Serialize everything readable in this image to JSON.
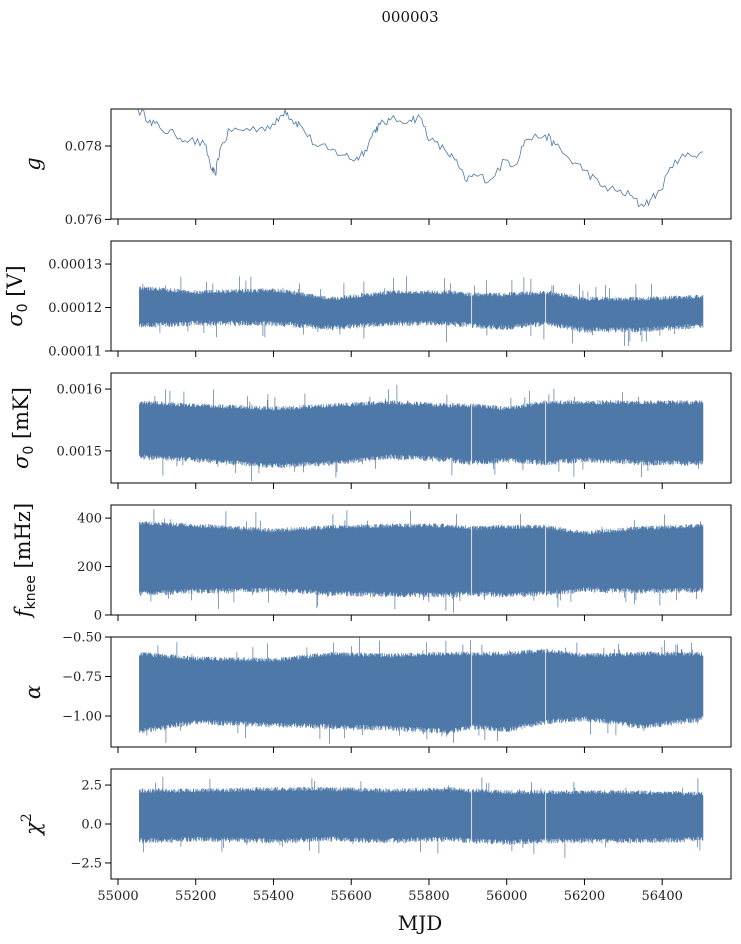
{
  "chart_data": {
    "type": "line",
    "title": "000003",
    "xlabel": "MJD",
    "xlim": [
      54982,
      56577
    ],
    "xticks": [
      55000,
      55200,
      55400,
      55600,
      55800,
      56000,
      56200,
      56400
    ],
    "xtick_labels": [
      "55000",
      "55200",
      "55400",
      "55600",
      "55800",
      "56000",
      "56200",
      "56400"
    ],
    "color": "#4e78a8",
    "panels": [
      {
        "ylabel": "g",
        "ylabel_sub": "",
        "ylabel_suffix": "",
        "ylim": [
          0.07601,
          0.07901
        ],
        "yticks": [
          0.076,
          0.078
        ],
        "ytick_labels": [
          "0.076",
          "0.078"
        ],
        "style": "line",
        "x": [
          55051,
          55082,
          55108,
          55147,
          55185,
          55224,
          55242,
          55250,
          55262,
          55288,
          55314,
          55365,
          55404,
          55430,
          55448,
          55468,
          55507,
          55546,
          55584,
          55610,
          55636,
          55661,
          55674,
          55700,
          55751,
          55777,
          55803,
          55841,
          55867,
          55893,
          55919,
          55957,
          55996,
          56022,
          56047,
          56099,
          56125,
          56163,
          56202,
          56240,
          56279,
          56318,
          56343,
          56369,
          56395,
          56433,
          56472,
          56505
        ],
        "y": [
          0.07899,
          0.07871,
          0.07849,
          0.0783,
          0.07816,
          0.07803,
          0.07734,
          0.07721,
          0.07789,
          0.07844,
          0.07844,
          0.07849,
          0.07858,
          0.07899,
          0.07871,
          0.07858,
          0.07803,
          0.07789,
          0.07775,
          0.07762,
          0.07789,
          0.07844,
          0.07858,
          0.07871,
          0.07871,
          0.07879,
          0.07816,
          0.07789,
          0.07762,
          0.07707,
          0.07721,
          0.07707,
          0.07762,
          0.07748,
          0.07816,
          0.0783,
          0.07803,
          0.07762,
          0.07734,
          0.07693,
          0.07679,
          0.07666,
          0.07638,
          0.07652,
          0.07679,
          0.07762,
          0.07775,
          0.07784
        ]
      },
      {
        "ylabel": "σ",
        "ylabel_sub": "0",
        "ylabel_suffix": " [V]",
        "ylim": [
          0.00011,
          0.0001353
        ],
        "yticks": [
          0.00011,
          0.00012,
          0.00013
        ],
        "ytick_labels": [
          "0.00011",
          "0.00012",
          "0.00013"
        ],
        "style": "band",
        "x": [
          55055,
          55200,
          55400,
          55550,
          55700,
          55850,
          55910,
          56000,
          56100,
          56200,
          56350,
          56505
        ],
        "low": [
          0.0001165,
          0.000117,
          0.000117,
          0.000116,
          0.000117,
          0.000117,
          0.0001165,
          0.000116,
          0.000117,
          0.0001155,
          0.0001155,
          0.0001165
        ],
        "high": [
          0.000124,
          0.000123,
          0.0001235,
          0.0001215,
          0.000123,
          0.000123,
          0.0001225,
          0.0001225,
          0.000123,
          0.0001215,
          0.0001215,
          0.000122
        ],
        "gaps": [
          55910,
          56100
        ]
      },
      {
        "ylabel": "σ",
        "ylabel_sub": "0",
        "ylabel_suffix": " [mK]",
        "ylim": [
          0.001448,
          0.001626
        ],
        "yticks": [
          0.0015,
          0.0016
        ],
        "ytick_labels": [
          "0.0015",
          "0.0016"
        ],
        "style": "band",
        "x": [
          55055,
          55200,
          55400,
          55550,
          55700,
          55850,
          55910,
          56000,
          56100,
          56200,
          56350,
          56505
        ],
        "low": [
          0.001495,
          0.00149,
          0.00148,
          0.001485,
          0.001495,
          0.00149,
          0.001485,
          0.00149,
          0.001485,
          0.00149,
          0.001485,
          0.001485
        ],
        "high": [
          0.001575,
          0.00157,
          0.001565,
          0.00157,
          0.001575,
          0.00157,
          0.00157,
          0.001565,
          0.001575,
          0.001575,
          0.001575,
          0.001575
        ],
        "gaps": [
          55910,
          56100
        ]
      },
      {
        "ylabel": "f",
        "ylabel_sub": "knee",
        "ylabel_suffix": " [mHz]",
        "ylim": [
          0,
          454
        ],
        "yticks": [
          0,
          200,
          400
        ],
        "ytick_labels": [
          "0",
          "200",
          "400"
        ],
        "style": "band",
        "x": [
          55055,
          55200,
          55400,
          55550,
          55700,
          55850,
          55910,
          56000,
          56100,
          56200,
          56350,
          56505
        ],
        "low": [
          100,
          110,
          115,
          100,
          95,
          95,
          100,
          95,
          100,
          115,
          110,
          115
        ],
        "high": [
          370,
          360,
          340,
          355,
          360,
          360,
          350,
          355,
          355,
          330,
          350,
          360
        ],
        "gaps": [
          55910,
          56100
        ]
      },
      {
        "ylabel": "α",
        "ylabel_sub": "",
        "ylabel_suffix": "",
        "ylim": [
          -1.196,
          -0.5
        ],
        "yticks": [
          -1.0,
          -0.75,
          -0.5
        ],
        "ytick_labels": [
          "−1.00",
          "−0.75",
          "−0.50"
        ],
        "style": "band",
        "x": [
          55055,
          55200,
          55400,
          55550,
          55700,
          55850,
          55910,
          56000,
          56100,
          56200,
          56350,
          56505
        ],
        "low": [
          -1.08,
          -1.02,
          -1.04,
          -1.05,
          -1.06,
          -1.08,
          -1.05,
          -1.07,
          -1.02,
          -1.0,
          -1.05,
          -1.0
        ],
        "high": [
          -0.62,
          -0.65,
          -0.66,
          -0.62,
          -0.63,
          -0.62,
          -0.62,
          -0.62,
          -0.6,
          -0.63,
          -0.62,
          -0.62
        ],
        "gaps": [
          55910,
          56100
        ]
      },
      {
        "ylabel": "χ",
        "ylabel_sub": "",
        "ylabel_sup": "2",
        "ylabel_suffix": "",
        "ylim": [
          -3.53,
          3.53
        ],
        "yticks": [
          -2.5,
          0.0,
          2.5
        ],
        "ytick_labels": [
          "−2.5",
          "0.0",
          "2.5"
        ],
        "style": "band",
        "x": [
          55055,
          55200,
          55400,
          55550,
          55700,
          55850,
          55910,
          56000,
          56100,
          56200,
          56350,
          56505
        ],
        "low": [
          -0.9,
          -0.8,
          -0.9,
          -0.8,
          -0.9,
          -0.8,
          -0.9,
          -1.0,
          -0.9,
          -0.9,
          -0.9,
          -0.8
        ],
        "high": [
          2.0,
          2.0,
          2.1,
          2.1,
          2.0,
          2.1,
          2.0,
          1.9,
          1.9,
          1.9,
          1.9,
          1.8
        ],
        "gaps": [
          55910,
          56100
        ]
      }
    ]
  }
}
